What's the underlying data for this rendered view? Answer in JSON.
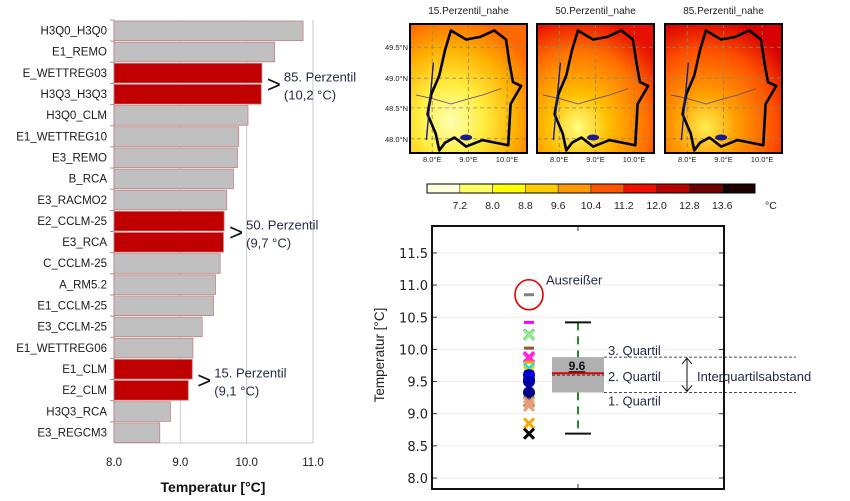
{
  "chart_data": [
    {
      "type": "bar",
      "orientation": "horizontal",
      "title": "",
      "xlabel": "Temperatur [°C]",
      "ylabel": "",
      "xlim": [
        8.0,
        11.0
      ],
      "xticks": [
        "8.0",
        "9.0",
        "10.0",
        "11.0"
      ],
      "xtick_values": [
        8.0,
        9.0,
        10.0,
        11.0
      ],
      "grid": true,
      "categories": [
        "H3Q0_H3Q0",
        "E1_REMO",
        "E_WETTREG03",
        "H3Q3_H3Q3",
        "H3Q0_CLM",
        "E1_WETTREG10",
        "E3_REMO",
        "B_RCA",
        "E3_RACMO2",
        "E2_CCLM-25",
        "E3_RCA",
        "C_CCLM-25",
        "A_RM5.2",
        "E1_CCLM-25",
        "E3_CCLM-25",
        "E1_WETTREG06",
        "E1_CLM",
        "E2_CLM",
        "H3Q3_RCA",
        "E3_REGCM3"
      ],
      "values": [
        10.85,
        10.42,
        10.23,
        10.22,
        10.02,
        9.88,
        9.86,
        9.8,
        9.7,
        9.66,
        9.65,
        9.6,
        9.53,
        9.5,
        9.33,
        9.19,
        9.18,
        9.12,
        8.85,
        8.69
      ],
      "highlighted": [
        false,
        false,
        true,
        true,
        false,
        false,
        false,
        false,
        false,
        true,
        true,
        false,
        false,
        false,
        false,
        false,
        true,
        true,
        false,
        false
      ],
      "colors": {
        "default": "#c0c0c0",
        "highlight": "#c00000",
        "edge": "#c08080"
      },
      "annotations": [
        {
          "arrow": ">",
          "line1": "85. Perzentil",
          "line2": "(10,2 °C)",
          "rows": [
            2,
            3
          ]
        },
        {
          "arrow": ">",
          "line1": "50. Perzentil",
          "line2": "(9,7 °C)",
          "rows": [
            9,
            10
          ]
        },
        {
          "arrow": ">",
          "line1": "15. Perzentil",
          "line2": "(9,1 °C)",
          "rows": [
            16,
            17
          ]
        }
      ]
    },
    {
      "type": "heatmap",
      "subtype": "map-panels",
      "panels": [
        {
          "title": "15.Perzentil_nahe",
          "level": 0.15
        },
        {
          "title": "50.Perzentil_nahe",
          "level": 0.5
        },
        {
          "title": "85.Perzentil_nahe",
          "level": 0.85
        }
      ],
      "lat_ticks": [
        "49.5°N",
        "49.0°N",
        "48.5°N",
        "48.0°N"
      ],
      "lon_ticks": [
        "8.0°E",
        "9.0°E",
        "10.0°E"
      ],
      "colorbar": {
        "unit": "°C",
        "ticks": [
          "7.2",
          "8.0",
          "8.8",
          "9.6",
          "10.4",
          "11.2",
          "12.0",
          "12.8",
          "13.6"
        ],
        "colors": [
          "#ffffe0",
          "#ffff66",
          "#ffff00",
          "#ffcc00",
          "#ff9900",
          "#ff5500",
          "#ee1100",
          "#b80000",
          "#700000",
          "#1a0000"
        ],
        "range": [
          6.4,
          14.4
        ]
      }
    },
    {
      "type": "scatter",
      "subtype": "boxplot",
      "ylabel": "Temperatur [°C]",
      "ylim": [
        7.9,
        11.85
      ],
      "yticks": [
        "8.0",
        "8.5",
        "9.0",
        "9.5",
        "10.0",
        "10.5",
        "11.0",
        "11.5"
      ],
      "ytick_values": [
        8.0,
        8.5,
        9.0,
        9.5,
        10.0,
        10.5,
        11.0,
        11.5
      ],
      "grid": true,
      "box": {
        "q1": 9.33,
        "median": 9.6,
        "mean": 9.63,
        "q3": 9.88,
        "whisker_low": 8.69,
        "whisker_high": 10.42,
        "median_label": "9.6"
      },
      "outlier": {
        "value": 10.85,
        "label": "Ausreißer"
      },
      "members": [
        {
          "value": 10.42,
          "marker": "_",
          "color": "#ff00ff"
        },
        {
          "value": 10.23,
          "marker": "x",
          "color": "#7f8f7f"
        },
        {
          "value": 10.22,
          "marker": "x",
          "color": "#90ee90"
        },
        {
          "value": 10.02,
          "marker": "_",
          "color": "#a0522d"
        },
        {
          "value": 9.88,
          "marker": "x",
          "color": "#ff00ff"
        },
        {
          "value": 9.86,
          "marker": "x",
          "color": "#ff33cc"
        },
        {
          "value": 9.8,
          "marker": "_",
          "color": "#ffa500"
        },
        {
          "value": 9.7,
          "marker": "x",
          "color": "#00e5ee"
        },
        {
          "value": 9.66,
          "marker": "x",
          "color": "#ddd000"
        },
        {
          "value": 9.65,
          "marker": "_",
          "color": "#000000"
        },
        {
          "value": 9.6,
          "marker": "o",
          "color": "#0000cd"
        },
        {
          "value": 9.53,
          "marker": "o",
          "color": "#0000ff"
        },
        {
          "value": 9.5,
          "marker": "o",
          "color": "#0000aa"
        },
        {
          "value": 9.33,
          "marker": "o",
          "color": "#00008b"
        },
        {
          "value": 9.19,
          "marker": "x",
          "color": "#006400"
        },
        {
          "value": 9.18,
          "marker": "x",
          "color": "#e9967a"
        },
        {
          "value": 9.12,
          "marker": "x",
          "color": "#e9a07a"
        },
        {
          "value": 8.85,
          "marker": "x",
          "color": "#ffa500"
        },
        {
          "value": 8.69,
          "marker": "x",
          "color": "#000000"
        }
      ],
      "annotations": {
        "q3": "3. Quartil",
        "q2": "2. Quartil",
        "q1": "1. Quartil",
        "iqr": "Interquartilsabstand",
        "iqr_arrow": "↕"
      }
    }
  ]
}
